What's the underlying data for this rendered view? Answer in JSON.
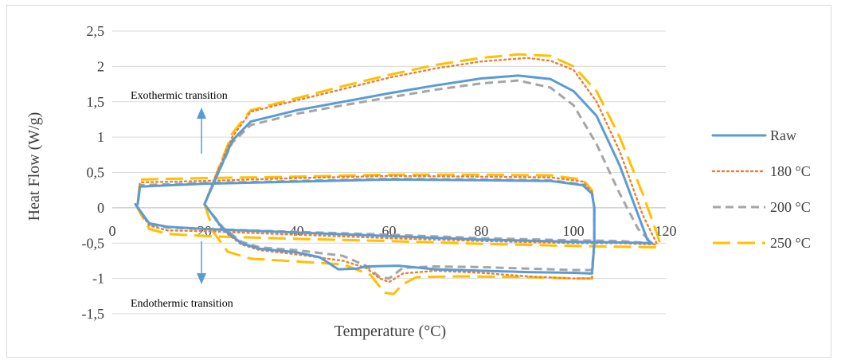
{
  "chart_data": {
    "type": "line",
    "xlabel": "Temperature (°C)",
    "ylabel": "Heat Flow (W/g)",
    "xlim": [
      0,
      120
    ],
    "ylim": [
      -1.5,
      2.5
    ],
    "x_ticks": [
      0,
      20,
      40,
      60,
      80,
      100,
      120
    ],
    "y_ticks": [
      2.5,
      2,
      1.5,
      1,
      0.5,
      0,
      -0.5,
      -1,
      -1.5
    ],
    "x_tick_labels": [
      "0",
      "20",
      "40",
      "60",
      "80",
      "100",
      "120"
    ],
    "y_tick_labels": [
      "2,5",
      "2",
      "1,5",
      "1",
      "0,5",
      "0",
      "-0,5",
      "-1",
      "-1,5"
    ],
    "grid": "horizontal",
    "legend_position": "right",
    "annotations": {
      "exothermic": "Exothermic transition",
      "endothermic": "Endothermic transition"
    },
    "series": [
      {
        "name": "Raw",
        "color": "#5b9bd5",
        "dash": "solid",
        "segments": [
          [
            [
              5,
              0.05
            ],
            [
              8,
              -0.22
            ],
            [
              12,
              -0.27
            ],
            [
              20,
              -0.3
            ],
            [
              40,
              -0.35
            ],
            [
              60,
              -0.4
            ],
            [
              80,
              -0.45
            ],
            [
              100,
              -0.48
            ],
            [
              110,
              -0.49
            ],
            [
              117,
              -0.5
            ]
          ],
          [
            [
              20,
              0.05
            ],
            [
              24,
              -0.3
            ],
            [
              28,
              -0.5
            ],
            [
              32,
              -0.58
            ],
            [
              40,
              -0.63
            ],
            [
              45,
              -0.7
            ],
            [
              49,
              -0.87
            ],
            [
              53,
              -0.86
            ],
            [
              55,
              -0.83
            ],
            [
              62,
              -0.82
            ],
            [
              70,
              -0.87
            ],
            [
              80,
              -0.89
            ],
            [
              90,
              -0.91
            ],
            [
              100,
              -0.92
            ],
            [
              104,
              -0.93
            ],
            [
              104.5,
              -0.5
            ],
            [
              104.5,
              0.0
            ],
            [
              104,
              0.2
            ],
            [
              102,
              0.32
            ],
            [
              95,
              0.38
            ],
            [
              80,
              0.39
            ],
            [
              60,
              0.4
            ],
            [
              40,
              0.37
            ],
            [
              20,
              0.34
            ],
            [
              6,
              0.3
            ],
            [
              5.5,
              0.05
            ]
          ],
          [
            [
              20,
              0.05
            ],
            [
              23,
              0.5
            ],
            [
              26,
              0.95
            ],
            [
              30,
              1.22
            ],
            [
              40,
              1.38
            ],
            [
              50,
              1.5
            ],
            [
              60,
              1.62
            ],
            [
              70,
              1.73
            ],
            [
              80,
              1.83
            ],
            [
              88,
              1.87
            ],
            [
              95,
              1.82
            ],
            [
              100,
              1.65
            ],
            [
              105,
              1.3
            ],
            [
              110,
              0.6
            ],
            [
              114,
              -0.1
            ],
            [
              116,
              -0.45
            ],
            [
              117,
              -0.5
            ]
          ]
        ]
      },
      {
        "name": "180 °C",
        "color": "#ed7d31",
        "dash": "dotted",
        "segments": [
          [
            [
              5,
              0.05
            ],
            [
              8,
              -0.25
            ],
            [
              12,
              -0.32
            ],
            [
              20,
              -0.33
            ],
            [
              40,
              -0.38
            ],
            [
              60,
              -0.43
            ],
            [
              80,
              -0.47
            ],
            [
              100,
              -0.5
            ],
            [
              110,
              -0.5
            ],
            [
              118,
              -0.52
            ]
          ],
          [
            [
              20,
              0.05
            ],
            [
              24,
              -0.32
            ],
            [
              28,
              -0.52
            ],
            [
              32,
              -0.6
            ],
            [
              40,
              -0.66
            ],
            [
              50,
              -0.75
            ],
            [
              55,
              -0.85
            ],
            [
              58,
              -1.0
            ],
            [
              60,
              -1.05
            ],
            [
              63,
              -0.93
            ],
            [
              70,
              -0.89
            ],
            [
              80,
              -0.92
            ],
            [
              90,
              -0.97
            ],
            [
              100,
              -1.0
            ],
            [
              104,
              -1.0
            ],
            [
              104.5,
              -0.5
            ],
            [
              104.5,
              0.0
            ],
            [
              104,
              0.22
            ],
            [
              102,
              0.37
            ],
            [
              95,
              0.43
            ],
            [
              80,
              0.44
            ],
            [
              60,
              0.45
            ],
            [
              40,
              0.42
            ],
            [
              20,
              0.38
            ],
            [
              6,
              0.36
            ],
            [
              5.5,
              0.05
            ]
          ],
          [
            [
              20,
              0.05
            ],
            [
              23,
              0.55
            ],
            [
              26,
              1.0
            ],
            [
              30,
              1.36
            ],
            [
              40,
              1.52
            ],
            [
              50,
              1.68
            ],
            [
              60,
              1.84
            ],
            [
              70,
              1.97
            ],
            [
              80,
              2.07
            ],
            [
              90,
              2.12
            ],
            [
              95,
              2.08
            ],
            [
              100,
              1.95
            ],
            [
              105,
              1.5
            ],
            [
              110,
              0.8
            ],
            [
              115,
              -0.1
            ],
            [
              118,
              -0.5
            ]
          ]
        ]
      },
      {
        "name": "200 °C",
        "color": "#a5a5a5",
        "dash": "dashed",
        "segments": [
          [
            [
              5,
              0.05
            ],
            [
              8,
              -0.23
            ],
            [
              12,
              -0.28
            ],
            [
              20,
              -0.3
            ],
            [
              40,
              -0.34
            ],
            [
              60,
              -0.38
            ],
            [
              80,
              -0.43
            ],
            [
              100,
              -0.46
            ],
            [
              110,
              -0.47
            ],
            [
              117,
              -0.5
            ]
          ],
          [
            [
              20,
              0.05
            ],
            [
              24,
              -0.28
            ],
            [
              28,
              -0.48
            ],
            [
              32,
              -0.56
            ],
            [
              40,
              -0.6
            ],
            [
              50,
              -0.68
            ],
            [
              55,
              -0.82
            ],
            [
              58,
              -0.98
            ],
            [
              60,
              -1.0
            ],
            [
              63,
              -0.85
            ],
            [
              70,
              -0.83
            ],
            [
              80,
              -0.84
            ],
            [
              90,
              -0.86
            ],
            [
              100,
              -0.88
            ],
            [
              104,
              -0.88
            ],
            [
              104.5,
              -0.5
            ],
            [
              104.5,
              0.0
            ],
            [
              104,
              0.2
            ],
            [
              102,
              0.33
            ],
            [
              95,
              0.39
            ],
            [
              80,
              0.4
            ],
            [
              60,
              0.41
            ],
            [
              40,
              0.38
            ],
            [
              20,
              0.35
            ],
            [
              6,
              0.32
            ],
            [
              5.5,
              0.05
            ]
          ],
          [
            [
              20,
              0.05
            ],
            [
              23,
              0.5
            ],
            [
              26,
              0.92
            ],
            [
              30,
              1.17
            ],
            [
              40,
              1.33
            ],
            [
              50,
              1.45
            ],
            [
              60,
              1.56
            ],
            [
              70,
              1.67
            ],
            [
              80,
              1.76
            ],
            [
              88,
              1.8
            ],
            [
              95,
              1.7
            ],
            [
              100,
              1.45
            ],
            [
              105,
              0.9
            ],
            [
              110,
              0.2
            ],
            [
              114,
              -0.3
            ],
            [
              117,
              -0.5
            ]
          ]
        ]
      },
      {
        "name": "250 °C",
        "color": "#ffc000",
        "dash": "longdash",
        "segments": [
          [
            [
              5,
              0.05
            ],
            [
              8,
              -0.3
            ],
            [
              12,
              -0.37
            ],
            [
              20,
              -0.4
            ],
            [
              40,
              -0.44
            ],
            [
              60,
              -0.47
            ],
            [
              80,
              -0.51
            ],
            [
              100,
              -0.54
            ],
            [
              110,
              -0.55
            ],
            [
              119,
              -0.56
            ]
          ],
          [
            [
              20,
              0.05
            ],
            [
              22,
              -0.35
            ],
            [
              25,
              -0.62
            ],
            [
              30,
              -0.72
            ],
            [
              40,
              -0.76
            ],
            [
              50,
              -0.8
            ],
            [
              56,
              -0.95
            ],
            [
              59,
              -1.2
            ],
            [
              61,
              -1.22
            ],
            [
              63,
              -1.08
            ],
            [
              66,
              -0.98
            ],
            [
              75,
              -0.97
            ],
            [
              90,
              -0.98
            ],
            [
              100,
              -1.0
            ],
            [
              104,
              -1.0
            ],
            [
              104.5,
              -0.5
            ],
            [
              104.5,
              0.0
            ],
            [
              104,
              0.25
            ],
            [
              102,
              0.4
            ],
            [
              95,
              0.46
            ],
            [
              80,
              0.47
            ],
            [
              60,
              0.47
            ],
            [
              40,
              0.44
            ],
            [
              20,
              0.42
            ],
            [
              6,
              0.4
            ],
            [
              5.5,
              0.05
            ]
          ],
          [
            [
              20,
              0.05
            ],
            [
              23,
              0.55
            ],
            [
              26,
              1.05
            ],
            [
              30,
              1.38
            ],
            [
              40,
              1.55
            ],
            [
              50,
              1.72
            ],
            [
              60,
              1.88
            ],
            [
              70,
              2.02
            ],
            [
              80,
              2.12
            ],
            [
              88,
              2.17
            ],
            [
              95,
              2.15
            ],
            [
              100,
              2.0
            ],
            [
              105,
              1.65
            ],
            [
              110,
              1.0
            ],
            [
              115,
              0.2
            ],
            [
              118,
              -0.35
            ],
            [
              119,
              -0.55
            ]
          ]
        ]
      }
    ]
  }
}
